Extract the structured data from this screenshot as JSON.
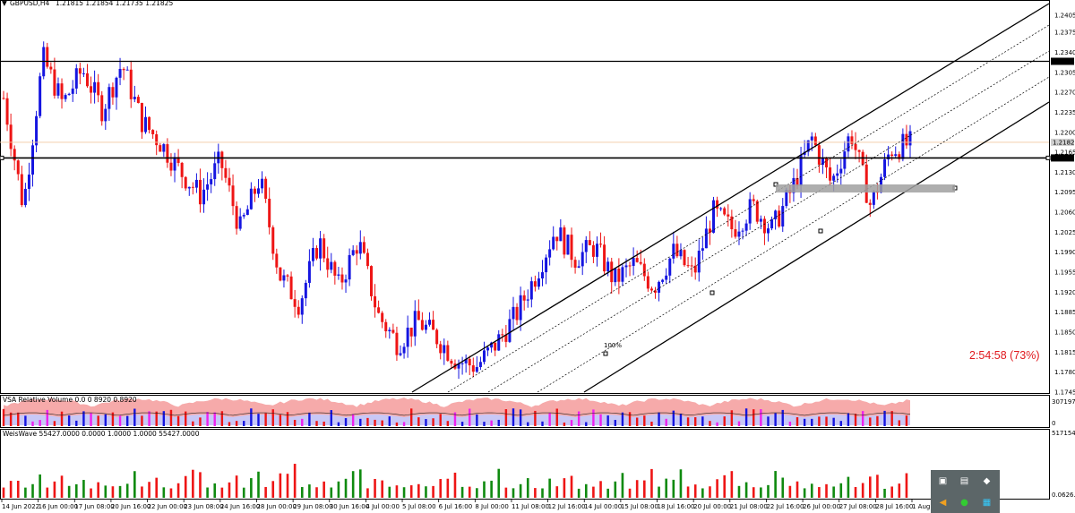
{
  "header": {
    "symbol_title": "GBPUSD,H4",
    "ohlc": "1.21815 1.21854 1.21735 1.21825",
    "timer": "2:54:58 (73%)"
  },
  "indicators": {
    "vsa_title": "VSA Relative Volume 0.0 0 8920 0.8920",
    "vsa_scale": [
      "307197",
      "0"
    ],
    "weis_title": "WeisWave 55427.0000 0.0000 1.0000 1.0000 55427.0000",
    "weis_scale": [
      "517154.4",
      "0.0626.4"
    ]
  },
  "colors": {
    "bull": "#1515e0",
    "bear": "#ee1515",
    "wave_up": "#0f8a0f",
    "wave_down": "#ee1515",
    "vsa_band_top": "#f6aaaa",
    "vsa_band_bottom": "#c8c8f6",
    "vsa_magenta": "#ee22ee",
    "timer": "#e0191e",
    "tray": "#5c6668"
  },
  "tray_icons": [
    "app-icon",
    "network-icon",
    "shield-icon",
    "volume-icon",
    "update-icon",
    "battery-icon"
  ],
  "chart_data": {
    "type": "candlestick",
    "price_axis": [
      "1.24050",
      "1.23750",
      "1.23400",
      "1.23050",
      "1.22700",
      "1.22350",
      "1.22000",
      "1.21650",
      "1.21300",
      "1.20950",
      "1.20600",
      "1.20250",
      "1.19900",
      "1.19550",
      "1.19200",
      "1.18850",
      "1.18500",
      "1.18150",
      "1.17800",
      "1.17450"
    ],
    "price_tags": [
      {
        "label": "1.23243",
        "price": 1.23243
      },
      {
        "label": "1.21825",
        "price": 1.21825
      },
      {
        "label": "1.21551",
        "price": 1.21551
      }
    ],
    "time_axis": [
      "14 Jun 2022",
      "16 Jun 00:00",
      "17 Jun 08:00",
      "20 Jun 16:00",
      "22 Jun 00:00",
      "23 Jun 08:00",
      "24 Jun 16:00",
      "28 Jun 00:00",
      "29 Jun 08:00",
      "30 Jun 16:00",
      "4 Jul 00:00",
      "5 Jul 08:00",
      "6 Jul 16:00",
      "8 Jul 00:00",
      "11 Jul 08:00",
      "12 Jul 16:00",
      "14 Jul 00:00",
      "15 Jul 08:00",
      "18 Jul 16:00",
      "20 Jul 00:00",
      "21 Jul 08:00",
      "22 Jul 16:00",
      "26 Jul 00:00",
      "27 Jul 08:00",
      "28 Jul 16:00",
      "1 Aug 00:00"
    ],
    "horizontal_levels": [
      1.23243,
      1.21551
    ],
    "anchors": [
      1.226,
      1.207,
      1.233,
      1.225,
      1.231,
      1.224,
      1.232,
      1.222,
      1.218,
      1.213,
      1.209,
      1.215,
      1.203,
      1.212,
      1.195,
      1.19,
      1.201,
      1.193,
      1.201,
      1.188,
      1.183,
      1.187,
      1.184,
      1.18,
      1.179,
      1.183,
      1.188,
      1.195,
      1.203,
      1.198,
      1.2,
      1.194,
      1.197,
      1.193,
      1.199,
      1.195,
      1.206,
      1.203,
      1.207,
      1.203,
      1.21,
      1.219,
      1.211,
      1.22,
      1.207,
      1.217,
      1.218
    ],
    "channel_note": "ascending regression channel",
    "labels_on_chart": [
      "100%"
    ]
  }
}
